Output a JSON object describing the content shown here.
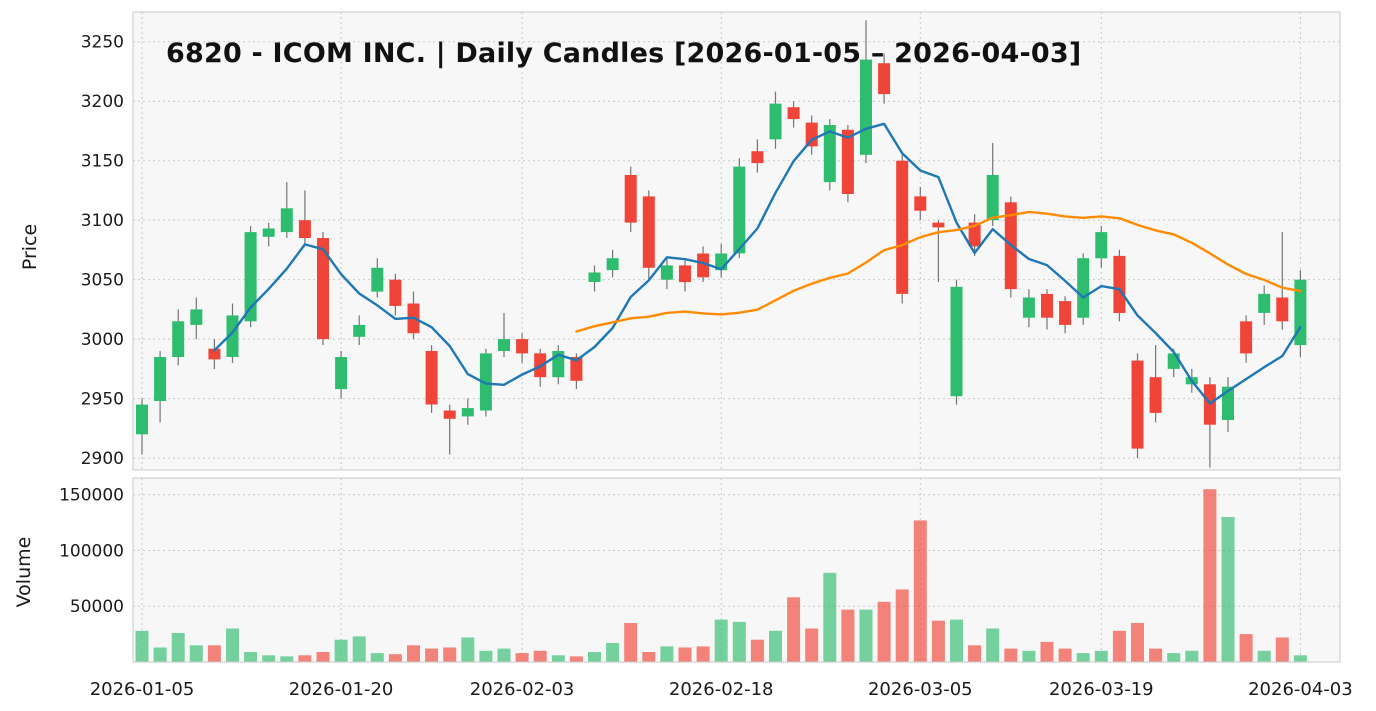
{
  "chart_data": {
    "type": "candlestick",
    "title": "6820 - ICOM INC. | Daily Candles [2026-01-05 – 2026-04-03]",
    "ylabel_price": "Price",
    "ylabel_volume": "Volume",
    "x_tick_labels": [
      "2026-01-05",
      "2026-01-20",
      "2026-02-03",
      "2026-02-18",
      "2026-03-05",
      "2026-03-19",
      "2026-04-03"
    ],
    "x_tick_indices": [
      0,
      11,
      21,
      32,
      43,
      53,
      64
    ],
    "price_ticks": [
      2900,
      2950,
      3000,
      3050,
      3100,
      3150,
      3200,
      3250
    ],
    "volume_ticks": [
      50000,
      100000,
      150000
    ],
    "price_range": [
      2890,
      3275
    ],
    "volume_range": [
      0,
      165000
    ],
    "grid": true,
    "legend_position": "none",
    "moving_averages": [
      {
        "name": "MA5",
        "period": 5,
        "color": "#1f77b4"
      },
      {
        "name": "MA25",
        "period": 25,
        "color": "#ff8c00"
      }
    ],
    "colors": {
      "up": "#2ebd6e",
      "down": "#ef4438",
      "wick": "#757575",
      "grid": "#c9c9c9",
      "panel_bg": "#f7f7f7",
      "border": "#c8c8c8",
      "tick_text": "#1a1a1a"
    },
    "candle_fields": [
      "date",
      "open",
      "high",
      "low",
      "close",
      "volume"
    ],
    "candles": [
      [
        "2026-01-05",
        2920,
        2950,
        2903,
        2945,
        28000
      ],
      [
        "2026-01-06",
        2948,
        2990,
        2930,
        2985,
        13000
      ],
      [
        "2026-01-07",
        2985,
        3025,
        2978,
        3015,
        26000
      ],
      [
        "2026-01-08",
        3012,
        3035,
        3000,
        3025,
        15000
      ],
      [
        "2026-01-09",
        2992,
        3000,
        2975,
        2983,
        15000
      ],
      [
        "2026-01-12",
        2985,
        3030,
        2980,
        3020,
        30000
      ],
      [
        "2026-01-13",
        3015,
        3095,
        3010,
        3090,
        9000
      ],
      [
        "2026-01-14",
        3086,
        3098,
        3078,
        3093,
        6000
      ],
      [
        "2026-01-15",
        3090,
        3132,
        3085,
        3110,
        5000
      ],
      [
        "2026-01-16",
        3100,
        3125,
        3080,
        3085,
        6000
      ],
      [
        "2026-01-19",
        3085,
        3090,
        2995,
        3000,
        9000
      ],
      [
        "2026-01-20",
        2958,
        2990,
        2950,
        2985,
        20000
      ],
      [
        "2026-01-21",
        3002,
        3020,
        2995,
        3012,
        23000
      ],
      [
        "2026-01-22",
        3040,
        3068,
        3035,
        3060,
        8000
      ],
      [
        "2026-01-23",
        3050,
        3055,
        3020,
        3028,
        7000
      ],
      [
        "2026-01-26",
        3030,
        3040,
        3000,
        3005,
        15000
      ],
      [
        "2026-01-27",
        2990,
        2995,
        2938,
        2945,
        12000
      ],
      [
        "2026-01-28",
        2940,
        2945,
        2903,
        2933,
        13000
      ],
      [
        "2026-01-29",
        2935,
        2950,
        2928,
        2942,
        22000
      ],
      [
        "2026-01-30",
        2940,
        2992,
        2935,
        2988,
        10000
      ],
      [
        "2026-02-02",
        2990,
        3022,
        2985,
        3000,
        12000
      ],
      [
        "2026-02-03",
        3000,
        3005,
        2980,
        2988,
        8000
      ],
      [
        "2026-02-04",
        2988,
        2992,
        2960,
        2968,
        10000
      ],
      [
        "2026-02-05",
        2968,
        2995,
        2962,
        2990,
        6000
      ],
      [
        "2026-02-06",
        2985,
        2988,
        2958,
        2965,
        5000
      ],
      [
        "2026-02-09",
        3048,
        3062,
        3040,
        3056,
        9000
      ],
      [
        "2026-02-10",
        3058,
        3075,
        3052,
        3068,
        17000
      ],
      [
        "2026-02-11",
        3138,
        3145,
        3090,
        3098,
        35000
      ],
      [
        "2026-02-12",
        3120,
        3125,
        3050,
        3060,
        9000
      ],
      [
        "2026-02-13",
        3050,
        3068,
        3042,
        3062,
        14000
      ],
      [
        "2026-02-16",
        3062,
        3066,
        3040,
        3048,
        13000
      ],
      [
        "2026-02-17",
        3072,
        3078,
        3048,
        3052,
        14000
      ],
      [
        "2026-02-18",
        3058,
        3080,
        3052,
        3072,
        38000
      ],
      [
        "2026-02-19",
        3072,
        3152,
        3068,
        3145,
        36000
      ],
      [
        "2026-02-20",
        3158,
        3168,
        3140,
        3148,
        20000
      ],
      [
        "2026-02-23",
        3168,
        3208,
        3160,
        3198,
        28000
      ],
      [
        "2026-02-24",
        3195,
        3200,
        3178,
        3185,
        58000
      ],
      [
        "2026-02-25",
        3182,
        3188,
        3155,
        3162,
        30000
      ],
      [
        "2026-02-26",
        3132,
        3185,
        3125,
        3180,
        80000
      ],
      [
        "2026-02-27",
        3176,
        3180,
        3115,
        3122,
        47000
      ],
      [
        "2026-03-02",
        3155,
        3268,
        3148,
        3235,
        47000
      ],
      [
        "2026-03-03",
        3232,
        3240,
        3198,
        3206,
        54000
      ],
      [
        "2026-03-04",
        3150,
        3158,
        3030,
        3038,
        65000
      ],
      [
        "2026-03-05",
        3120,
        3128,
        3100,
        3108,
        127000
      ],
      [
        "2026-03-06",
        3098,
        3100,
        3048,
        3094,
        37000
      ],
      [
        "2026-03-09",
        2952,
        3050,
        2945,
        3044,
        38000
      ],
      [
        "2026-03-10",
        3098,
        3105,
        3070,
        3078,
        15000
      ],
      [
        "2026-03-11",
        3100,
        3165,
        3095,
        3138,
        30000
      ],
      [
        "2026-03-12",
        3115,
        3120,
        3035,
        3042,
        12000
      ],
      [
        "2026-03-13",
        3018,
        3042,
        3010,
        3035,
        10000
      ],
      [
        "2026-03-16",
        3038,
        3042,
        3008,
        3018,
        18000
      ],
      [
        "2026-03-17",
        3032,
        3036,
        3005,
        3012,
        12000
      ],
      [
        "2026-03-18",
        3018,
        3072,
        3012,
        3068,
        8000
      ],
      [
        "2026-03-19",
        3068,
        3095,
        3060,
        3090,
        10000
      ],
      [
        "2026-03-20",
        3070,
        3075,
        3015,
        3022,
        28000
      ],
      [
        "2026-03-23",
        2982,
        2988,
        2900,
        2908,
        35000
      ],
      [
        "2026-03-24",
        2968,
        2995,
        2930,
        2938,
        12000
      ],
      [
        "2026-03-25",
        2975,
        2992,
        2968,
        2988,
        8000
      ],
      [
        "2026-03-26",
        2962,
        2975,
        2955,
        2968,
        10000
      ],
      [
        "2026-03-27",
        2962,
        2968,
        2892,
        2928,
        155000
      ],
      [
        "2026-03-30",
        2932,
        2968,
        2922,
        2960,
        130000
      ],
      [
        "2026-03-31",
        3015,
        3020,
        2980,
        2988,
        25000
      ],
      [
        "2026-04-01",
        3022,
        3045,
        3012,
        3038,
        10000
      ],
      [
        "2026-04-02",
        3035,
        3090,
        3008,
        3015,
        22000
      ],
      [
        "2026-04-03",
        2995,
        3058,
        2985,
        3050,
        6000
      ]
    ]
  }
}
